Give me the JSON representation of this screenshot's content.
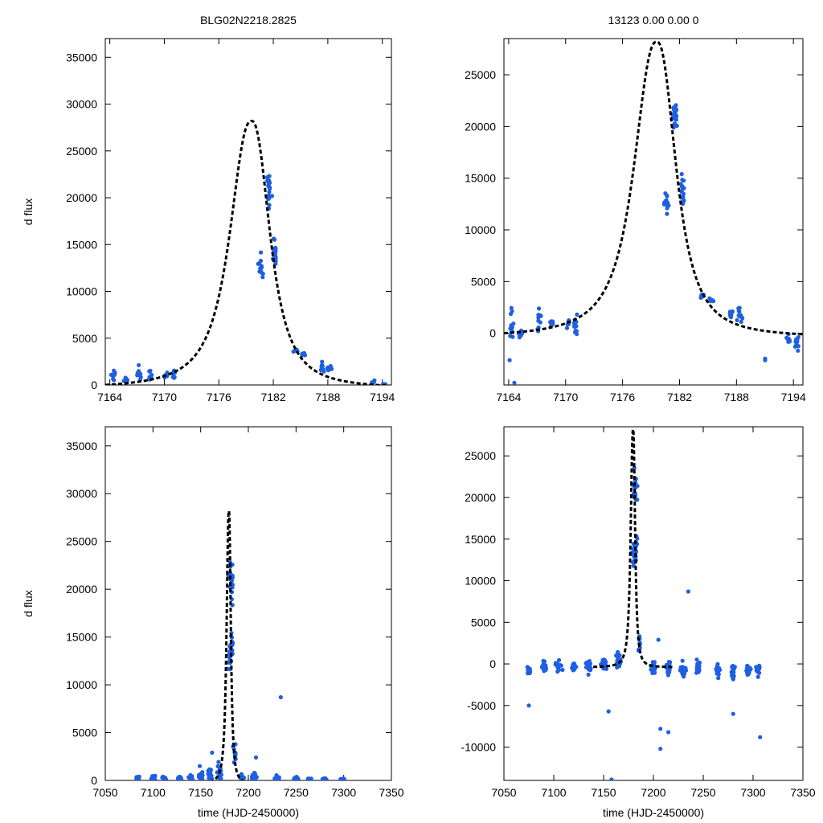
{
  "figure": {
    "left_title": "BLG02N2218.2825",
    "right_title": "13123  0.00  0.00  0"
  },
  "colors": {
    "points": "#1f5fe0",
    "model": "#000000"
  },
  "chart_data": [
    {
      "type": "scatter",
      "panel": "top-left",
      "ylabel": "d flux",
      "xlabel": "",
      "xlim": [
        7163.5,
        7195
      ],
      "ylim": [
        0,
        37000
      ],
      "xticks": [
        7164,
        7170,
        7176,
        7182,
        7188,
        7194
      ],
      "yticks": [
        0,
        5000,
        10000,
        15000,
        20000,
        25000,
        30000,
        35000
      ],
      "model": {
        "t0": 7179.6,
        "peak": 28200,
        "tau": 2.75,
        "baseline": -400,
        "tail": 2.4
      },
      "clusters": [
        {
          "x": 7164.4,
          "y": 900,
          "s": 700,
          "n": 8
        },
        {
          "x": 7165.8,
          "y": 500,
          "s": 300,
          "n": 6
        },
        {
          "x": 7167.2,
          "y": 1200,
          "s": 900,
          "n": 12
        },
        {
          "x": 7168.5,
          "y": 1000,
          "s": 350,
          "n": 8
        },
        {
          "x": 7170.2,
          "y": 1000,
          "s": 300,
          "n": 6
        },
        {
          "x": 7171.0,
          "y": 1200,
          "s": 500,
          "n": 12
        },
        {
          "x": 7180.6,
          "y": 12800,
          "s": 900,
          "n": 14
        },
        {
          "x": 7181.5,
          "y": 21000,
          "s": 1400,
          "n": 22
        },
        {
          "x": 7182.2,
          "y": 14000,
          "s": 1300,
          "n": 18
        },
        {
          "x": 7184.4,
          "y": 3700,
          "s": 250,
          "n": 6
        },
        {
          "x": 7185.3,
          "y": 3200,
          "s": 200,
          "n": 5
        },
        {
          "x": 7187.4,
          "y": 1900,
          "s": 350,
          "n": 10
        },
        {
          "x": 7188.2,
          "y": 1800,
          "s": 450,
          "n": 12
        },
        {
          "x": 7193.0,
          "y": 300,
          "s": 150,
          "n": 5
        },
        {
          "x": 7194.2,
          "y": 150,
          "s": 120,
          "n": 5
        }
      ]
    },
    {
      "type": "scatter",
      "panel": "top-right",
      "ylabel": "",
      "xlabel": "",
      "xlim": [
        7163.5,
        7195
      ],
      "ylim": [
        -5000,
        28500
      ],
      "xticks": [
        7164,
        7170,
        7176,
        7182,
        7188,
        7194
      ],
      "yticks": [
        0,
        5000,
        10000,
        15000,
        20000,
        25000
      ],
      "model": {
        "t0": 7179.6,
        "peak": 28200,
        "tau": 2.75,
        "baseline": -400,
        "tail": 2.4
      },
      "clusters": [
        {
          "x": 7164.3,
          "y": 500,
          "s": 1400,
          "n": 12
        },
        {
          "x": 7165.2,
          "y": 100,
          "s": 500,
          "n": 6
        },
        {
          "x": 7167.2,
          "y": 1000,
          "s": 900,
          "n": 12
        },
        {
          "x": 7168.5,
          "y": 1000,
          "s": 300,
          "n": 8
        },
        {
          "x": 7170.3,
          "y": 800,
          "s": 400,
          "n": 6
        },
        {
          "x": 7171.0,
          "y": 500,
          "s": 900,
          "n": 14
        },
        {
          "x": 7180.6,
          "y": 12500,
          "s": 900,
          "n": 14
        },
        {
          "x": 7181.5,
          "y": 21000,
          "s": 1400,
          "n": 22
        },
        {
          "x": 7182.3,
          "y": 14000,
          "s": 1300,
          "n": 18
        },
        {
          "x": 7184.4,
          "y": 3700,
          "s": 250,
          "n": 6
        },
        {
          "x": 7185.3,
          "y": 3200,
          "s": 200,
          "n": 5
        },
        {
          "x": 7187.4,
          "y": 1900,
          "s": 350,
          "n": 10
        },
        {
          "x": 7188.3,
          "y": 1800,
          "s": 450,
          "n": 12
        },
        {
          "x": 7191.0,
          "y": -2500,
          "s": 100,
          "n": 2
        },
        {
          "x": 7193.4,
          "y": -500,
          "s": 600,
          "n": 8
        },
        {
          "x": 7194.4,
          "y": -1000,
          "s": 700,
          "n": 10
        }
      ],
      "extra_points": [
        [
          7164.6,
          -4800
        ],
        [
          7164.1,
          -2600
        ]
      ]
    },
    {
      "type": "scatter",
      "panel": "bottom-left",
      "ylabel": "d flux",
      "xlabel": "time (HJD-2450000)",
      "xlim": [
        7050,
        7350
      ],
      "ylim": [
        0,
        37000
      ],
      "xticks": [
        7050,
        7100,
        7150,
        7200,
        7250,
        7300,
        7350
      ],
      "yticks": [
        0,
        5000,
        10000,
        15000,
        20000,
        25000,
        30000,
        35000
      ],
      "model": {
        "t0": 7179.6,
        "peak": 28200,
        "tau": 2.75,
        "baseline": -400,
        "tail": 2.4
      },
      "clusters": [
        {
          "x": 7085,
          "y": 200,
          "s": 150,
          "n": 14
        },
        {
          "x": 7100,
          "y": 300,
          "s": 250,
          "n": 16
        },
        {
          "x": 7112,
          "y": 200,
          "s": 200,
          "n": 10
        },
        {
          "x": 7128,
          "y": 250,
          "s": 200,
          "n": 10
        },
        {
          "x": 7140,
          "y": 300,
          "s": 250,
          "n": 14
        },
        {
          "x": 7150,
          "y": 400,
          "s": 300,
          "n": 30
        },
        {
          "x": 7160,
          "y": 600,
          "s": 500,
          "n": 30
        },
        {
          "x": 7170,
          "y": 800,
          "s": 800,
          "n": 24
        },
        {
          "x": 7180.6,
          "y": 12800,
          "s": 900,
          "n": 14
        },
        {
          "x": 7181.5,
          "y": 21000,
          "s": 1400,
          "n": 22
        },
        {
          "x": 7182.2,
          "y": 14000,
          "s": 1300,
          "n": 18
        },
        {
          "x": 7186,
          "y": 3000,
          "s": 800,
          "n": 10
        },
        {
          "x": 7193,
          "y": 300,
          "s": 250,
          "n": 12
        },
        {
          "x": 7207,
          "y": 400,
          "s": 350,
          "n": 20
        },
        {
          "x": 7230,
          "y": 300,
          "s": 200,
          "n": 14
        },
        {
          "x": 7250,
          "y": 200,
          "s": 150,
          "n": 10
        },
        {
          "x": 7265,
          "y": 150,
          "s": 100,
          "n": 6
        },
        {
          "x": 7280,
          "y": 150,
          "s": 100,
          "n": 6
        },
        {
          "x": 7300,
          "y": 150,
          "s": 100,
          "n": 5
        }
      ],
      "extra_points": [
        [
          7234,
          8700
        ],
        [
          7208,
          2400
        ],
        [
          7162,
          2900
        ],
        [
          7149,
          1500
        ]
      ]
    },
    {
      "type": "scatter",
      "panel": "bottom-right",
      "ylabel": "",
      "xlabel": "time (HJD-2450000)",
      "xlim": [
        7050,
        7350
      ],
      "ylim": [
        -14000,
        28500
      ],
      "xticks": [
        7050,
        7100,
        7150,
        7200,
        7250,
        7300,
        7350
      ],
      "yticks": [
        -10000,
        -5000,
        0,
        5000,
        10000,
        15000,
        20000,
        25000
      ],
      "model": {
        "t0": 7179.6,
        "peak": 28200,
        "tau": 2.75,
        "baseline": -400,
        "tail": 2.4
      },
      "clusters": [
        {
          "x": 7075,
          "y": -800,
          "s": 500,
          "n": 20
        },
        {
          "x": 7090,
          "y": -500,
          "s": 500,
          "n": 20
        },
        {
          "x": 7105,
          "y": -300,
          "s": 500,
          "n": 20
        },
        {
          "x": 7120,
          "y": -400,
          "s": 500,
          "n": 20
        },
        {
          "x": 7135,
          "y": -200,
          "s": 600,
          "n": 24
        },
        {
          "x": 7150,
          "y": 0,
          "s": 700,
          "n": 30
        },
        {
          "x": 7165,
          "y": 400,
          "s": 800,
          "n": 30
        },
        {
          "x": 7180.6,
          "y": 12800,
          "s": 900,
          "n": 14
        },
        {
          "x": 7181.5,
          "y": 21000,
          "s": 1400,
          "n": 22
        },
        {
          "x": 7182.2,
          "y": 14000,
          "s": 1300,
          "n": 18
        },
        {
          "x": 7186,
          "y": 2500,
          "s": 900,
          "n": 10
        },
        {
          "x": 7200,
          "y": -300,
          "s": 700,
          "n": 24
        },
        {
          "x": 7215,
          "y": -500,
          "s": 700,
          "n": 24
        },
        {
          "x": 7230,
          "y": -700,
          "s": 700,
          "n": 20
        },
        {
          "x": 7245,
          "y": -600,
          "s": 700,
          "n": 20
        },
        {
          "x": 7265,
          "y": -800,
          "s": 700,
          "n": 20
        },
        {
          "x": 7280,
          "y": -900,
          "s": 800,
          "n": 20
        },
        {
          "x": 7295,
          "y": -700,
          "s": 600,
          "n": 18
        },
        {
          "x": 7305,
          "y": -900,
          "s": 700,
          "n": 12
        }
      ],
      "extra_points": [
        [
          7235,
          8700
        ],
        [
          7207,
          -10200
        ],
        [
          7207,
          -7800
        ],
        [
          7215,
          -8200
        ],
        [
          7307,
          -8800
        ],
        [
          7158,
          -13900
        ],
        [
          7155,
          -5700
        ],
        [
          7075,
          -5000
        ],
        [
          7280,
          -6000
        ],
        [
          7205,
          2900
        ]
      ]
    }
  ]
}
